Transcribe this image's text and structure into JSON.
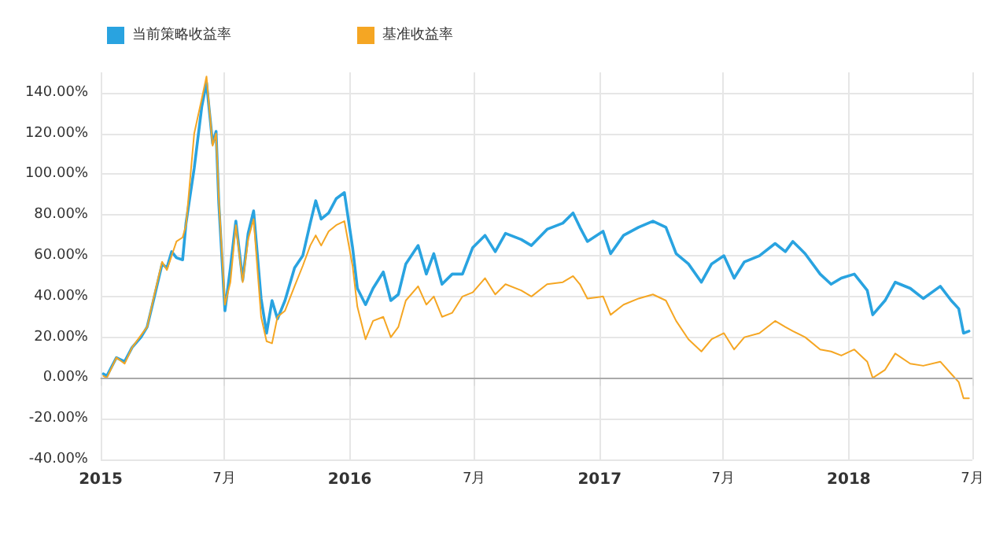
{
  "chart_data": {
    "type": "line",
    "xlim": [
      "2015-01",
      "2018-07"
    ],
    "xticks": [
      {
        "value": "2015-01",
        "label": "2015"
      },
      {
        "value": "2015-07",
        "label": "7月"
      },
      {
        "value": "2016-01",
        "label": "2016"
      },
      {
        "value": "2016-07",
        "label": "7月"
      },
      {
        "value": "2017-01",
        "label": "2017"
      },
      {
        "value": "2017-07",
        "label": "7月"
      },
      {
        "value": "2018-01",
        "label": "2018"
      },
      {
        "value": "2018-07",
        "label": "7月"
      }
    ],
    "ylim": [
      -40,
      150
    ],
    "yticks": [
      {
        "value": -40,
        "label": "-40.00%"
      },
      {
        "value": -20,
        "label": "-20.00%"
      },
      {
        "value": 0,
        "label": "0.00%"
      },
      {
        "value": 20,
        "label": "20.00%"
      },
      {
        "value": 40,
        "label": "40.00%"
      },
      {
        "value": 60,
        "label": "60.00%"
      },
      {
        "value": 80,
        "label": "80.00%"
      },
      {
        "value": 100,
        "label": "100.00%"
      },
      {
        "value": 120,
        "label": "120.00%"
      },
      {
        "value": 140,
        "label": "140.00%"
      }
    ],
    "grid": true,
    "legend": "top left",
    "marker": "none",
    "line_style": "solid",
    "ref_lines": [
      {
        "axis": "y",
        "value": 0,
        "color": "#aaaaaa"
      }
    ],
    "series": [
      {
        "name": "当前策略收益率",
        "color": "#29a3e0",
        "x": [
          "2015-01-05",
          "2015-01-10",
          "2015-01-24",
          "2015-02-05",
          "2015-02-16",
          "2015-03-01",
          "2015-03-10",
          "2015-03-20",
          "2015-04-01",
          "2015-04-08",
          "2015-04-15",
          "2015-04-22",
          "2015-05-01",
          "2015-05-06",
          "2015-05-18",
          "2015-05-29",
          "2015-06-05",
          "2015-06-14",
          "2015-06-19",
          "2015-06-23",
          "2015-07-02",
          "2015-07-10",
          "2015-07-18",
          "2015-07-28",
          "2015-08-05",
          "2015-08-13",
          "2015-08-24",
          "2015-09-01",
          "2015-09-09",
          "2015-09-17",
          "2015-09-28",
          "2015-10-12",
          "2015-10-24",
          "2015-11-04",
          "2015-11-12",
          "2015-11-20",
          "2015-12-01",
          "2015-12-12",
          "2015-12-24",
          "2016-01-05",
          "2016-01-12",
          "2016-01-24",
          "2016-02-04",
          "2016-02-19",
          "2016-03-01",
          "2016-03-12",
          "2016-03-23",
          "2016-04-10",
          "2016-04-22",
          "2016-05-03",
          "2016-05-15",
          "2016-05-30",
          "2016-06-14",
          "2016-06-29",
          "2016-07-17",
          "2016-08-01",
          "2016-08-16",
          "2016-09-08",
          "2016-09-23",
          "2016-10-16",
          "2016-11-08",
          "2016-11-23",
          "2016-12-03",
          "2016-12-14",
          "2017-01-06",
          "2017-01-17",
          "2017-02-05",
          "2017-02-27",
          "2017-03-20",
          "2017-04-08",
          "2017-04-23",
          "2017-05-11",
          "2017-05-30",
          "2017-06-14",
          "2017-07-02",
          "2017-07-17",
          "2017-08-01",
          "2017-08-23",
          "2017-09-15",
          "2017-09-30",
          "2017-10-11",
          "2017-10-29",
          "2017-11-20",
          "2017-12-06",
          "2017-12-21",
          "2018-01-09",
          "2018-01-28",
          "2018-02-05",
          "2018-02-23",
          "2018-03-10",
          "2018-04-01",
          "2018-04-20",
          "2018-05-15",
          "2018-05-31",
          "2018-06-11",
          "2018-06-18",
          "2018-06-26"
        ],
        "values": [
          2,
          1,
          10,
          8,
          15,
          20,
          25,
          39,
          56,
          54,
          62,
          59,
          58,
          76,
          103,
          133,
          145,
          115,
          121,
          86,
          33,
          54,
          77,
          48,
          71,
          82,
          39,
          22,
          38,
          29,
          38,
          54,
          60,
          76,
          87,
          78,
          81,
          88,
          91,
          64,
          44,
          36,
          44,
          52,
          38,
          41,
          56,
          65,
          51,
          61,
          46,
          51,
          51,
          64,
          70,
          62,
          71,
          68,
          65,
          73,
          76,
          81,
          74,
          67,
          72,
          61,
          70,
          74,
          77,
          74,
          61,
          56,
          47,
          56,
          60,
          49,
          57,
          60,
          66,
          62,
          67,
          61,
          51,
          46,
          49,
          51,
          43,
          31,
          38,
          47,
          44,
          39,
          45,
          38,
          34,
          22,
          23
        ]
      },
      {
        "name": "基准收益率",
        "color": "#f5a623",
        "x": [
          "2015-01-05",
          "2015-01-10",
          "2015-01-24",
          "2015-02-05",
          "2015-02-16",
          "2015-03-01",
          "2015-03-10",
          "2015-03-20",
          "2015-04-01",
          "2015-04-08",
          "2015-04-15",
          "2015-04-22",
          "2015-05-01",
          "2015-05-06",
          "2015-05-18",
          "2015-05-29",
          "2015-06-05",
          "2015-06-14",
          "2015-06-19",
          "2015-06-23",
          "2015-07-02",
          "2015-07-10",
          "2015-07-18",
          "2015-07-28",
          "2015-08-05",
          "2015-08-13",
          "2015-08-24",
          "2015-09-01",
          "2015-09-09",
          "2015-09-17",
          "2015-09-28",
          "2015-10-12",
          "2015-10-24",
          "2015-11-04",
          "2015-11-12",
          "2015-11-20",
          "2015-12-01",
          "2015-12-12",
          "2015-12-24",
          "2016-01-05",
          "2016-01-12",
          "2016-01-24",
          "2016-02-04",
          "2016-02-19",
          "2016-03-01",
          "2016-03-12",
          "2016-03-23",
          "2016-04-10",
          "2016-04-22",
          "2016-05-03",
          "2016-05-15",
          "2016-05-30",
          "2016-06-14",
          "2016-06-29",
          "2016-07-17",
          "2016-08-01",
          "2016-08-16",
          "2016-09-08",
          "2016-09-23",
          "2016-10-16",
          "2016-11-08",
          "2016-11-23",
          "2016-12-03",
          "2016-12-14",
          "2017-01-06",
          "2017-01-17",
          "2017-02-05",
          "2017-02-27",
          "2017-03-20",
          "2017-04-08",
          "2017-04-23",
          "2017-05-11",
          "2017-05-30",
          "2017-06-14",
          "2017-07-02",
          "2017-07-17",
          "2017-08-01",
          "2017-08-23",
          "2017-09-15",
          "2017-09-30",
          "2017-10-11",
          "2017-10-29",
          "2017-11-20",
          "2017-12-06",
          "2017-12-21",
          "2018-01-09",
          "2018-01-28",
          "2018-02-05",
          "2018-02-23",
          "2018-03-10",
          "2018-04-01",
          "2018-04-20",
          "2018-05-15",
          "2018-05-31",
          "2018-06-11",
          "2018-06-18",
          "2018-06-26"
        ],
        "values": [
          1,
          0,
          10,
          7,
          15,
          21,
          25,
          40,
          57,
          53,
          60,
          67,
          69,
          75,
          120,
          137,
          148,
          114,
          120,
          88,
          36,
          47,
          75,
          47,
          68,
          78,
          30,
          18,
          17,
          30,
          33,
          45,
          55,
          65,
          70,
          65,
          72,
          75,
          77,
          55,
          35,
          19,
          28,
          30,
          20,
          25,
          38,
          45,
          36,
          40,
          30,
          32,
          40,
          42,
          49,
          41,
          46,
          43,
          40,
          46,
          47,
          50,
          46,
          39,
          40,
          31,
          36,
          39,
          41,
          38,
          28,
          19,
          13,
          19,
          22,
          14,
          20,
          22,
          28,
          25,
          23,
          20,
          14,
          13,
          11,
          14,
          8,
          0,
          4,
          12,
          7,
          6,
          8,
          2,
          -2,
          -10,
          -10
        ]
      }
    ]
  }
}
